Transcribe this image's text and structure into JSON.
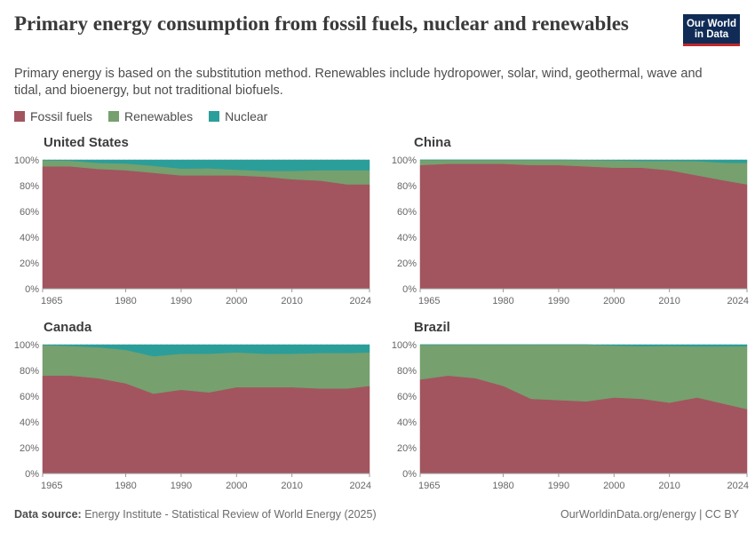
{
  "header": {
    "title": "Primary energy consumption from fossil fuels, nuclear and renewables",
    "subtitle": "Primary energy is based on the substitution method. Renewables include hydropower, solar, wind, geothermal, wave and tidal, and bioenergy, but not traditional biofuels."
  },
  "logo": {
    "line1": "Our World",
    "line2": "in Data"
  },
  "legend": [
    {
      "label": "Fossil fuels",
      "color": "#a2555f"
    },
    {
      "label": "Renewables",
      "color": "#76a06e"
    },
    {
      "label": "Nuclear",
      "color": "#2b9e9a"
    }
  ],
  "footer": {
    "source_label": "Data source:",
    "source_text": "Energy Institute - Statistical Review of World Energy (2025)",
    "right": "OurWorldinData.org/energy | CC BY"
  },
  "chart_data": [
    {
      "type": "area",
      "stacked": true,
      "title": "United States",
      "x": [
        1965,
        1970,
        1975,
        1980,
        1985,
        1990,
        1995,
        2000,
        2005,
        2010,
        2015,
        2020,
        2024
      ],
      "series": [
        {
          "name": "Fossil fuels",
          "values": [
            95,
            95,
            93,
            92,
            90,
            88,
            88,
            88,
            87,
            85,
            84,
            81,
            81
          ]
        },
        {
          "name": "Renewables",
          "values": [
            4.7,
            4.4,
            4.7,
            5.2,
            5.4,
            5.3,
            5.5,
            4.4,
            4.5,
            6.5,
            8,
            11,
            11
          ]
        },
        {
          "name": "Nuclear",
          "values": [
            0.3,
            0.6,
            2.3,
            2.8,
            4.6,
            6.7,
            6.5,
            7.6,
            8.5,
            8.5,
            8,
            8,
            8
          ]
        }
      ],
      "xticks": [
        "1965",
        "1980",
        "1990",
        "2000",
        "2010",
        "2024"
      ],
      "yticks": [
        "0%",
        "20%",
        "40%",
        "60%",
        "80%",
        "100%"
      ],
      "ylim": [
        0,
        100
      ]
    },
    {
      "type": "area",
      "stacked": true,
      "title": "China",
      "x": [
        1965,
        1970,
        1975,
        1980,
        1985,
        1990,
        1995,
        2000,
        2005,
        2010,
        2015,
        2020,
        2024
      ],
      "series": [
        {
          "name": "Fossil fuels",
          "values": [
            96,
            97,
            97,
            97,
            96,
            96,
            95,
            94,
            94,
            92,
            88,
            84,
            81
          ]
        },
        {
          "name": "Renewables",
          "values": [
            4,
            3,
            3,
            3,
            4,
            4,
            4.8,
            5.6,
            5.2,
            7.2,
            11,
            13.8,
            16.7
          ]
        },
        {
          "name": "Nuclear",
          "values": [
            0,
            0,
            0,
            0,
            0,
            0,
            0.2,
            0.4,
            0.8,
            0.8,
            1,
            2.2,
            2.3
          ]
        }
      ],
      "xticks": [
        "1965",
        "1980",
        "1990",
        "2000",
        "2010",
        "2024"
      ],
      "yticks": [
        "0%",
        "20%",
        "40%",
        "60%",
        "80%",
        "100%"
      ],
      "ylim": [
        0,
        100
      ]
    },
    {
      "type": "area",
      "stacked": true,
      "title": "Canada",
      "x": [
        1965,
        1970,
        1975,
        1980,
        1985,
        1990,
        1995,
        2000,
        2005,
        2010,
        2015,
        2020,
        2024
      ],
      "series": [
        {
          "name": "Fossil fuels",
          "values": [
            76,
            76,
            74,
            70,
            62,
            65,
            63,
            67,
            67,
            67,
            66,
            66,
            68
          ]
        },
        {
          "name": "Renewables",
          "values": [
            23.8,
            23,
            24,
            26,
            29,
            28,
            30,
            27,
            26,
            26,
            27.5,
            27.5,
            26
          ]
        },
        {
          "name": "Nuclear",
          "values": [
            0.2,
            1,
            2,
            4,
            9,
            7,
            7,
            6,
            7,
            7,
            6.5,
            6.5,
            6
          ]
        }
      ],
      "xticks": [
        "1965",
        "1980",
        "1990",
        "2000",
        "2010",
        "2024"
      ],
      "yticks": [
        "0%",
        "20%",
        "40%",
        "60%",
        "80%",
        "100%"
      ],
      "ylim": [
        0,
        100
      ]
    },
    {
      "type": "area",
      "stacked": true,
      "title": "Brazil",
      "x": [
        1965,
        1970,
        1975,
        1980,
        1985,
        1990,
        1995,
        2000,
        2005,
        2010,
        2015,
        2020,
        2024
      ],
      "series": [
        {
          "name": "Fossil fuels",
          "values": [
            73,
            76,
            74,
            68,
            58,
            57,
            56,
            59,
            58,
            55,
            59,
            54,
            50
          ]
        },
        {
          "name": "Renewables",
          "values": [
            27,
            24,
            26,
            32,
            42,
            43,
            44,
            40.3,
            40.8,
            44,
            39.7,
            44.7,
            48.8
          ]
        },
        {
          "name": "Nuclear",
          "values": [
            0,
            0,
            0,
            0,
            0,
            0,
            0,
            0.7,
            1.2,
            1,
            1.3,
            1.3,
            1.2
          ]
        }
      ],
      "xticks": [
        "1965",
        "1980",
        "1990",
        "2000",
        "2010",
        "2024"
      ],
      "yticks": [
        "0%",
        "20%",
        "40%",
        "60%",
        "80%",
        "100%"
      ],
      "ylim": [
        0,
        100
      ]
    }
  ]
}
